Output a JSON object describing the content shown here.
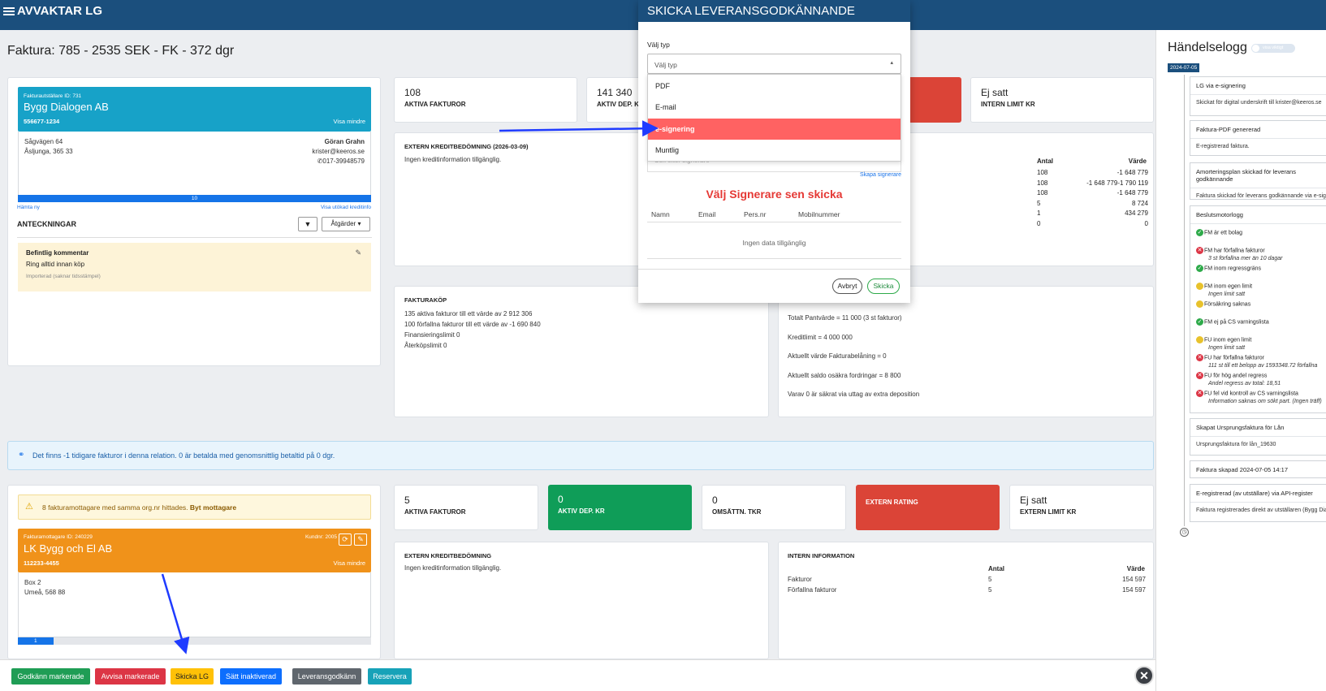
{
  "app": {
    "title": "AVVAKTAR LG"
  },
  "page": {
    "title": "Faktura: 785 - 2535 SEK - FK - 372 dgr"
  },
  "issuer": {
    "id_label": "Fakturautställare ID: 731",
    "name": "Bygg Dialogen AB",
    "orgnr": "556677-1234",
    "toggle": "Visa mindre",
    "street": "Sågvägen 64",
    "city": "Åsljunga, 365 33",
    "contact_name": "Göran Grahn",
    "email": "krister@keeros.se",
    "phone": "017-39948579",
    "progress_label": "10",
    "link_fetch": "Hämta ny",
    "link_extended": "Visa utökad kreditinfo"
  },
  "notes": {
    "title": "ANTECKNINGAR",
    "actions": "Åtgärder",
    "comment_title": "Befintlig kommentar",
    "comment_text": "Ring alltid innan köp",
    "comment_meta": "Importerad (saknar tidsstämpel)"
  },
  "stats_top": [
    {
      "num": "108",
      "label": "AKTIVA FAKTUROR"
    },
    {
      "num": "141 340",
      "label": "AKTIV DEP. KR"
    },
    {
      "num": "Ej satt",
      "label": "INTERN LIMIT KR"
    }
  ],
  "extern_credit_top": {
    "title": "EXTERN KREDITBEDÖMNING (2026-03-09)",
    "text": "Ingen kreditinformation tillgänglig."
  },
  "intern_top": {
    "col_antal": "Antal",
    "col_varde": "Värde",
    "rows": [
      {
        "antal": "108",
        "varde": "-1 648 779"
      },
      {
        "antal": "",
        "varde": "-1 790 119"
      },
      {
        "antal": "108",
        "varde": "-1 648 779"
      },
      {
        "antal": "108",
        "varde": "-1 648 779"
      },
      {
        "antal": "5",
        "varde": "8 724"
      },
      {
        "antal": "1",
        "varde": "434 279"
      },
      {
        "antal": "0",
        "varde": "0"
      }
    ]
  },
  "fakturakop": {
    "title": "FAKTURAKÖP",
    "lines": [
      "135 aktiva fakturor till ett värde av 2 912 306",
      "100 förfallna fakturor till ett värde av -1 690 840",
      "Finansieringslimit 0",
      "Återköpslimit 0"
    ]
  },
  "pant": {
    "lines": [
      "Totalt Pantvärde = 11 000 (3 st fakturor)",
      "Kreditlimit = 4 000 000",
      "Aktuellt värde Fakturabelåning = 0",
      "Aktuellt saldo osäkra fordringar = 8 800",
      "Varav 0 är säkrat via uttag av extra deposition"
    ]
  },
  "info_bar": "Det finns -1 tidigare fakturor i denna relation. 0 är betalda med genomsnittlig betaltid på 0 dgr.",
  "warning": {
    "text": "8 fakturamottagare med samma org.nr hittades. ",
    "link": "Byt mottagare"
  },
  "receiver": {
    "id_label": "Fakturamottagare ID: 240229",
    "customer_label": "Kundnr: 2005",
    "name": "LK Bygg och El AB",
    "orgnr": "112233-4455",
    "toggle": "Visa mindre",
    "street": "Box 2",
    "city": "Umeå, 568 88",
    "progress_label": "1"
  },
  "stats_bottom": [
    {
      "num": "5",
      "label": "AKTIVA FAKTUROR"
    },
    {
      "num": "0",
      "label": "AKTIV DEP. KR"
    },
    {
      "num": "0",
      "label": "OMSÄTTN. TKR"
    },
    {
      "num": "",
      "label": "EXTERN RATING"
    },
    {
      "num": "Ej satt",
      "label": "EXTERN LIMIT KR"
    }
  ],
  "extern_credit_bottom": {
    "title": "EXTERN KREDITBEDÖMNING",
    "text": "Ingen kreditinformation tillgänglig."
  },
  "intern_bottom": {
    "title": "INTERN INFORMATION",
    "col_antal": "Antal",
    "col_varde": "Värde",
    "rows": [
      {
        "label": "Fakturor",
        "antal": "5",
        "varde": "154 597"
      },
      {
        "label": "Förfallna fakturor",
        "antal": "5",
        "varde": "154 597"
      }
    ]
  },
  "footer_buttons": {
    "approve": "Godkänn markerade",
    "reject": "Avvisa markerade",
    "send_lg": "Skicka LG",
    "inactive": "Sätt inaktiverad",
    "delivery": "Leveransgodkänn",
    "reserve": "Reservera"
  },
  "eventlog": {
    "title": "Händelselogg",
    "toggle_label": "visa viktigt",
    "date_badge": "2024-07-05",
    "items": [
      {
        "head": "LG via e-signering",
        "body": "Skickat för digital underskrift till krister@keeros.se"
      },
      {
        "head": "Faktura-PDF genererad",
        "body": "E-registrerad faktura."
      },
      {
        "head": "Amorteringsplan skickad för leverans godkännande",
        "body": "Faktura skickad för leverans godkännande via e-signering"
      }
    ],
    "bm_title": "Beslutsmotorlogg",
    "bm_rows": [
      {
        "status": "ok",
        "text": "FM är ett bolag",
        "sub": ""
      },
      {
        "status": "fail",
        "text": "FM har förfallna fakturor",
        "sub": "3 st förfallna mer än 10 dagar"
      },
      {
        "status": "ok",
        "text": "FM inom regressgräns",
        "sub": ""
      },
      {
        "status": "warn",
        "text": "FM inom egen limit",
        "sub": "Ingen limit satt"
      },
      {
        "status": "warn",
        "text": "Försäkring saknas",
        "sub": ""
      },
      {
        "status": "ok",
        "text": "FM ej på CS varningslista",
        "sub": ""
      },
      {
        "status": "warn",
        "text": "FU inom egen limit",
        "sub": "Ingen limit satt"
      },
      {
        "status": "fail",
        "text": "FU har förfallna fakturor",
        "sub": "111 st till ett belopp av 1593348.72 förfallna"
      },
      {
        "status": "fail",
        "text": "FU för hög andel regress",
        "sub": "Andel regress av total: 18,51"
      },
      {
        "status": "fail",
        "text": "FU fel vid kontroll av CS varningslista",
        "sub": "Information saknas om sökt part. (Ingen träff)"
      }
    ],
    "items2": [
      {
        "head": "Skapat Ursprungsfaktura för Lån",
        "body": "Ursprungsfaktura för lån_19630"
      },
      {
        "head": "Faktura skapad 2024-07-05 14:17",
        "body": ""
      },
      {
        "head": "E-registrerad (av utställare) via API-register",
        "body": "Faktura registrerades direkt av utställaren (Bygg Dialogen AB)"
      }
    ]
  },
  "modal": {
    "title": "SKICKA LEVERANSGODKÄNNANDE",
    "type_label": "Välj typ",
    "type_placeholder": "Välj typ",
    "options": [
      "PDF",
      "E-mail",
      "e-signering",
      "Muntlig"
    ],
    "selected_option": "e-signering",
    "signer_placeholder": "Sök efter signerare",
    "create_signer": "Skapa signerare",
    "warning": "Välj Signerare sen skicka",
    "cols": [
      "Namn",
      "Email",
      "Pers.nr",
      "Mobilnummer"
    ],
    "empty": "Ingen data tillgänglig",
    "cancel": "Avbryt",
    "send": "Skicka"
  },
  "colors": {
    "topbar": "#1b4f7d",
    "issuer_header": "#17a2c8",
    "receiver_header": "#f0921a",
    "rating_red": "#db4437",
    "green": "#0f9d58",
    "highlight": "#ff6262",
    "annotation_arrow": "#1f3bff"
  }
}
